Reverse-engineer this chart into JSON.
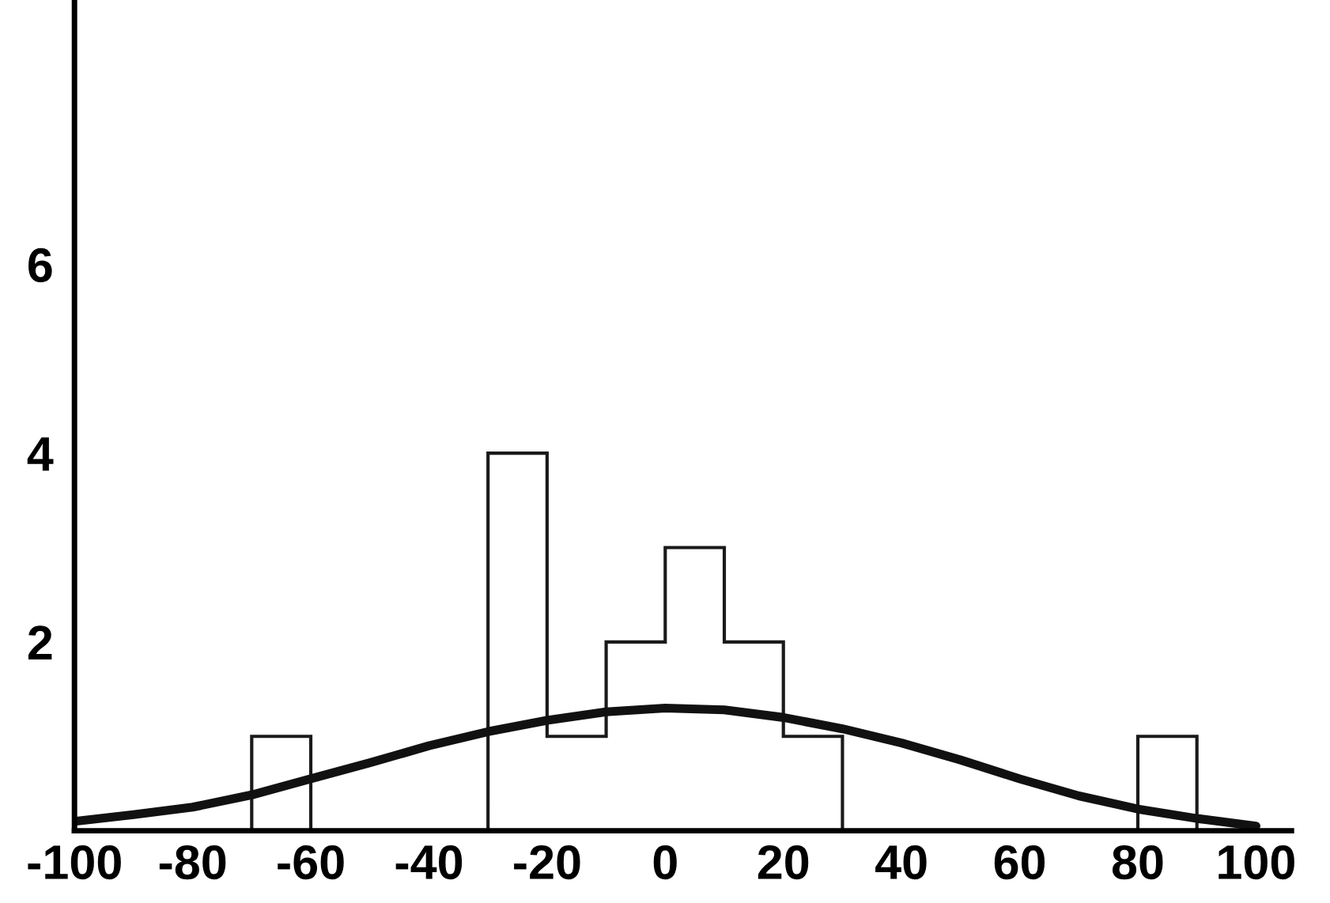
{
  "chart_data": {
    "type": "histogram",
    "bins": [
      -100,
      -90,
      -80,
      -70,
      -60,
      -50,
      -40,
      -30,
      -20,
      -10,
      0,
      10,
      20,
      30,
      40,
      50,
      60,
      70,
      80,
      90,
      100
    ],
    "values": [
      0,
      0,
      0,
      1,
      0,
      0,
      0,
      4,
      1,
      2,
      3,
      2,
      1,
      0,
      0,
      0,
      0,
      0,
      1,
      0
    ],
    "color": "#1a1a1a",
    "series": [
      {
        "type": "line",
        "color": "#111111",
        "x": [
          -100,
          -90,
          -80,
          -70,
          -60,
          -50,
          -40,
          -30,
          -20,
          -10,
          0,
          10,
          20,
          30,
          40,
          50,
          60,
          70,
          80,
          90,
          100
        ],
        "values": [
          0.1,
          0.17,
          0.25,
          0.38,
          0.55,
          0.72,
          0.9,
          1.05,
          1.17,
          1.26,
          1.3,
          1.28,
          1.2,
          1.08,
          0.93,
          0.75,
          0.55,
          0.37,
          0.23,
          0.13,
          0.05
        ]
      }
    ],
    "xlim": [
      -100,
      106
    ],
    "ylim": [
      0,
      8.8
    ],
    "xticks": [
      -100,
      -80,
      -60,
      -40,
      -20,
      0,
      20,
      40,
      60,
      80,
      100
    ],
    "yticks": [
      2,
      4,
      6
    ],
    "grid": false,
    "legend": false
  }
}
